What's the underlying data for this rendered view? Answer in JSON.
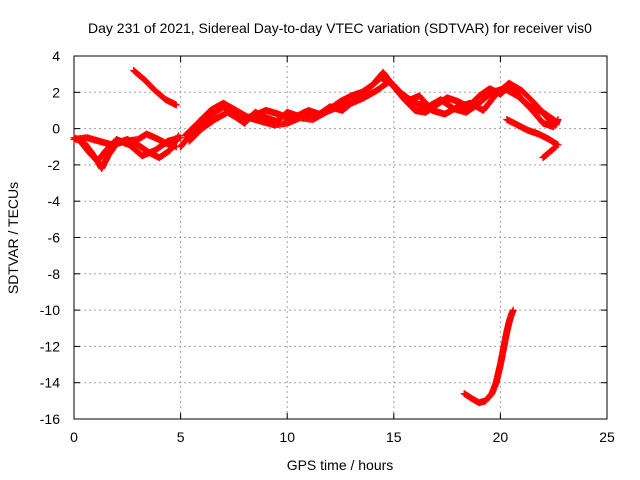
{
  "chart_data": {
    "type": "scatter",
    "title": "Day 231 of 2021, Sidereal Day-to-day VTEC variation (SDTVAR) for receiver vis0",
    "xlabel": "GPS time / hours",
    "ylabel": "SDTVAR / TECUs",
    "xlim": [
      0,
      25
    ],
    "ylim": [
      -16,
      4
    ],
    "xticks": [
      "0",
      "5",
      "10",
      "15",
      "20",
      "25"
    ],
    "yticks": [
      "4",
      "2",
      "0",
      "-2",
      "-4",
      "-6",
      "-8",
      "-10",
      "-12",
      "-14",
      "-16"
    ],
    "grid": true,
    "legend": "none",
    "marker": "plus",
    "color": "#ff0000",
    "segments": [
      {
        "x": [
          0.0,
          0.5,
          1.0,
          1.3,
          1.6,
          2.0,
          2.5,
          3.0,
          3.5,
          4.0,
          4.5,
          4.9
        ],
        "y": [
          -0.5,
          -0.8,
          -1.6,
          -2.2,
          -1.5,
          -0.8,
          -0.6,
          -0.9,
          -1.3,
          -1.6,
          -1.2,
          -0.4
        ]
      },
      {
        "x": [
          0.0,
          0.6,
          1.2,
          1.8,
          2.4,
          3.0,
          3.4,
          3.8,
          4.3,
          4.8
        ],
        "y": [
          -0.6,
          -0.5,
          -0.7,
          -0.9,
          -0.7,
          -0.6,
          -0.3,
          -0.5,
          -0.8,
          -1.0
        ]
      },
      {
        "x": [
          0.3,
          0.7,
          1.1,
          1.5,
          2.0,
          2.6,
          3.2,
          3.8,
          4.4,
          5.0
        ],
        "y": [
          -0.7,
          -1.3,
          -1.8,
          -1.2,
          -0.6,
          -0.9,
          -1.5,
          -1.2,
          -0.7,
          -0.5
        ]
      },
      {
        "x": [
          2.8,
          3.3,
          3.8,
          4.3,
          4.8
        ],
        "y": [
          3.2,
          2.7,
          2.1,
          1.6,
          1.3
        ]
      },
      {
        "x": [
          5.0,
          5.5,
          6.0,
          6.5,
          7.0,
          7.5,
          8.0,
          8.5,
          9.0,
          9.5,
          10.0,
          10.5,
          11.0,
          11.5,
          12.0,
          12.5,
          13.0,
          13.5,
          14.0,
          14.5,
          15.0,
          15.5,
          16.0,
          16.5,
          17.0,
          17.5,
          18.0,
          18.5,
          19.0,
          19.5,
          20.0,
          20.5,
          21.0,
          21.5,
          22.0,
          22.5
        ],
        "y": [
          -1.0,
          -0.3,
          0.2,
          0.8,
          1.2,
          0.7,
          0.3,
          0.9,
          0.6,
          0.4,
          0.9,
          0.7,
          1.0,
          0.8,
          1.1,
          1.5,
          1.8,
          2.0,
          2.4,
          3.1,
          2.3,
          1.6,
          1.0,
          0.9,
          1.3,
          1.7,
          1.5,
          1.2,
          1.8,
          2.2,
          1.9,
          2.4,
          1.6,
          1.0,
          0.3,
          0.1
        ]
      },
      {
        "x": [
          5.2,
          5.8,
          6.4,
          7.0,
          7.6,
          8.2,
          8.8,
          9.4,
          10.0,
          10.6,
          11.2,
          11.8,
          12.4,
          13.0,
          13.6,
          14.2,
          14.8,
          15.4,
          16.0,
          16.6,
          17.2,
          17.8,
          18.4,
          19.0,
          19.6,
          20.2,
          20.8,
          21.4,
          22.0,
          22.6
        ],
        "y": [
          -0.4,
          0.3,
          1.0,
          1.4,
          1.0,
          0.6,
          0.4,
          0.2,
          0.3,
          0.6,
          0.5,
          0.9,
          1.2,
          1.4,
          1.7,
          2.1,
          2.6,
          1.9,
          1.4,
          1.2,
          1.6,
          1.1,
          0.9,
          1.4,
          2.0,
          2.2,
          1.8,
          1.2,
          0.9,
          0.4
        ]
      },
      {
        "x": [
          5.4,
          6.0,
          6.6,
          7.2,
          7.8,
          8.4,
          9.0,
          9.6,
          10.2,
          10.8,
          11.4,
          12.0,
          12.6,
          13.2,
          13.8,
          14.4,
          15.0,
          15.6,
          16.2,
          16.8,
          17.4,
          18.0,
          18.6,
          19.2,
          19.8,
          20.4,
          21.0,
          21.6,
          22.2
        ],
        "y": [
          -0.7,
          0.0,
          0.5,
          0.9,
          0.5,
          0.7,
          1.0,
          0.8,
          0.5,
          0.9,
          0.7,
          1.2,
          1.0,
          1.6,
          2.2,
          2.8,
          2.4,
          1.5,
          1.8,
          1.0,
          0.8,
          1.2,
          1.4,
          1.0,
          1.9,
          2.5,
          2.1,
          1.4,
          0.6
        ]
      },
      {
        "x": [
          20.3,
          20.8,
          21.3,
          21.8,
          22.3,
          22.7
        ],
        "y": [
          0.5,
          0.2,
          -0.1,
          -0.3,
          -0.6,
          -0.9
        ]
      },
      {
        "x": [
          22.0,
          22.2,
          22.4,
          22.6
        ],
        "y": [
          -1.6,
          -1.4,
          -1.2,
          -1.0
        ]
      },
      {
        "x": [
          22.2,
          22.4,
          22.6,
          22.7
        ],
        "y": [
          0.6,
          0.4,
          0.2,
          0.5
        ]
      },
      {
        "x": [
          18.3,
          18.7,
          19.0,
          19.3,
          19.6,
          19.8,
          19.9,
          20.0,
          20.1,
          20.2,
          20.3,
          20.4,
          20.5,
          20.6
        ],
        "y": [
          -14.6,
          -14.9,
          -15.1,
          -15.0,
          -14.6,
          -14.0,
          -13.5,
          -13.0,
          -12.4,
          -11.8,
          -11.2,
          -10.7,
          -10.3,
          -10.0
        ]
      }
    ]
  }
}
